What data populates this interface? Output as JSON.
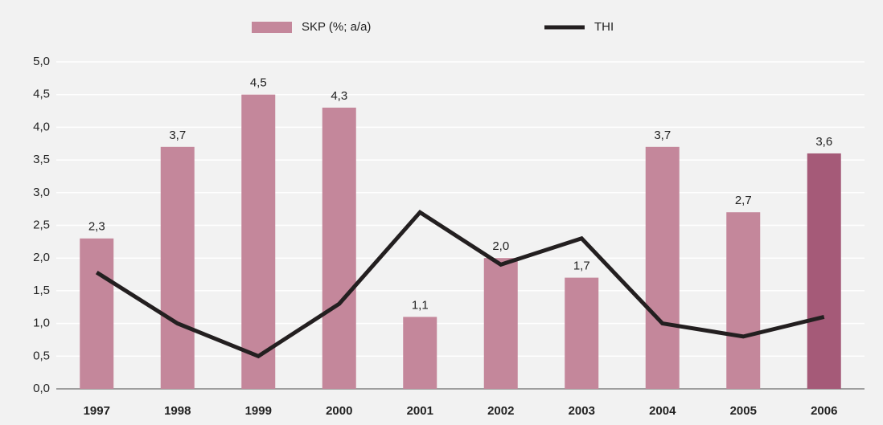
{
  "chart_data": {
    "type": "bar",
    "categories": [
      "1997",
      "1998",
      "1999",
      "2000",
      "2001",
      "2002",
      "2003",
      "2004",
      "2005",
      "2006"
    ],
    "series": [
      {
        "name": "SKP (%; a/a)",
        "type": "bar",
        "color": "#c4879b",
        "colors": [
          "#c4879b",
          "#c4879b",
          "#c4879b",
          "#c4879b",
          "#c4879b",
          "#c4879b",
          "#c4879b",
          "#c4879b",
          "#c4879b",
          "#a55a78"
        ],
        "values": [
          2.3,
          3.7,
          4.5,
          4.3,
          1.1,
          2.0,
          1.7,
          3.7,
          2.7,
          3.6
        ],
        "value_labels": [
          "2,3",
          "3,7",
          "4,5",
          "4,3",
          "1,1",
          "2,0",
          "1,7",
          "3,7",
          "2,7",
          "3,6"
        ]
      },
      {
        "name": "THI",
        "type": "line",
        "color": "#231f20",
        "values": [
          1.78,
          1.0,
          0.5,
          1.3,
          2.7,
          1.9,
          2.3,
          1.0,
          0.8,
          1.1
        ]
      }
    ],
    "ylim": [
      0,
      5
    ],
    "yticks": [
      {
        "value": 0,
        "label": "0,0"
      },
      {
        "value": 0.5,
        "label": "0,5"
      },
      {
        "value": 1,
        "label": "1,0"
      },
      {
        "value": 1.5,
        "label": "1,5"
      },
      {
        "value": 2,
        "label": "2,0"
      },
      {
        "value": 2.5,
        "label": "2,5"
      },
      {
        "value": 3,
        "label": "3,0"
      },
      {
        "value": 3.5,
        "label": "3,5"
      },
      {
        "value": 4,
        "label": "4,0"
      },
      {
        "value": 4.5,
        "label": "4,5"
      },
      {
        "value": 5,
        "label": "5,0"
      }
    ],
    "grid": true,
    "legend": "top"
  }
}
